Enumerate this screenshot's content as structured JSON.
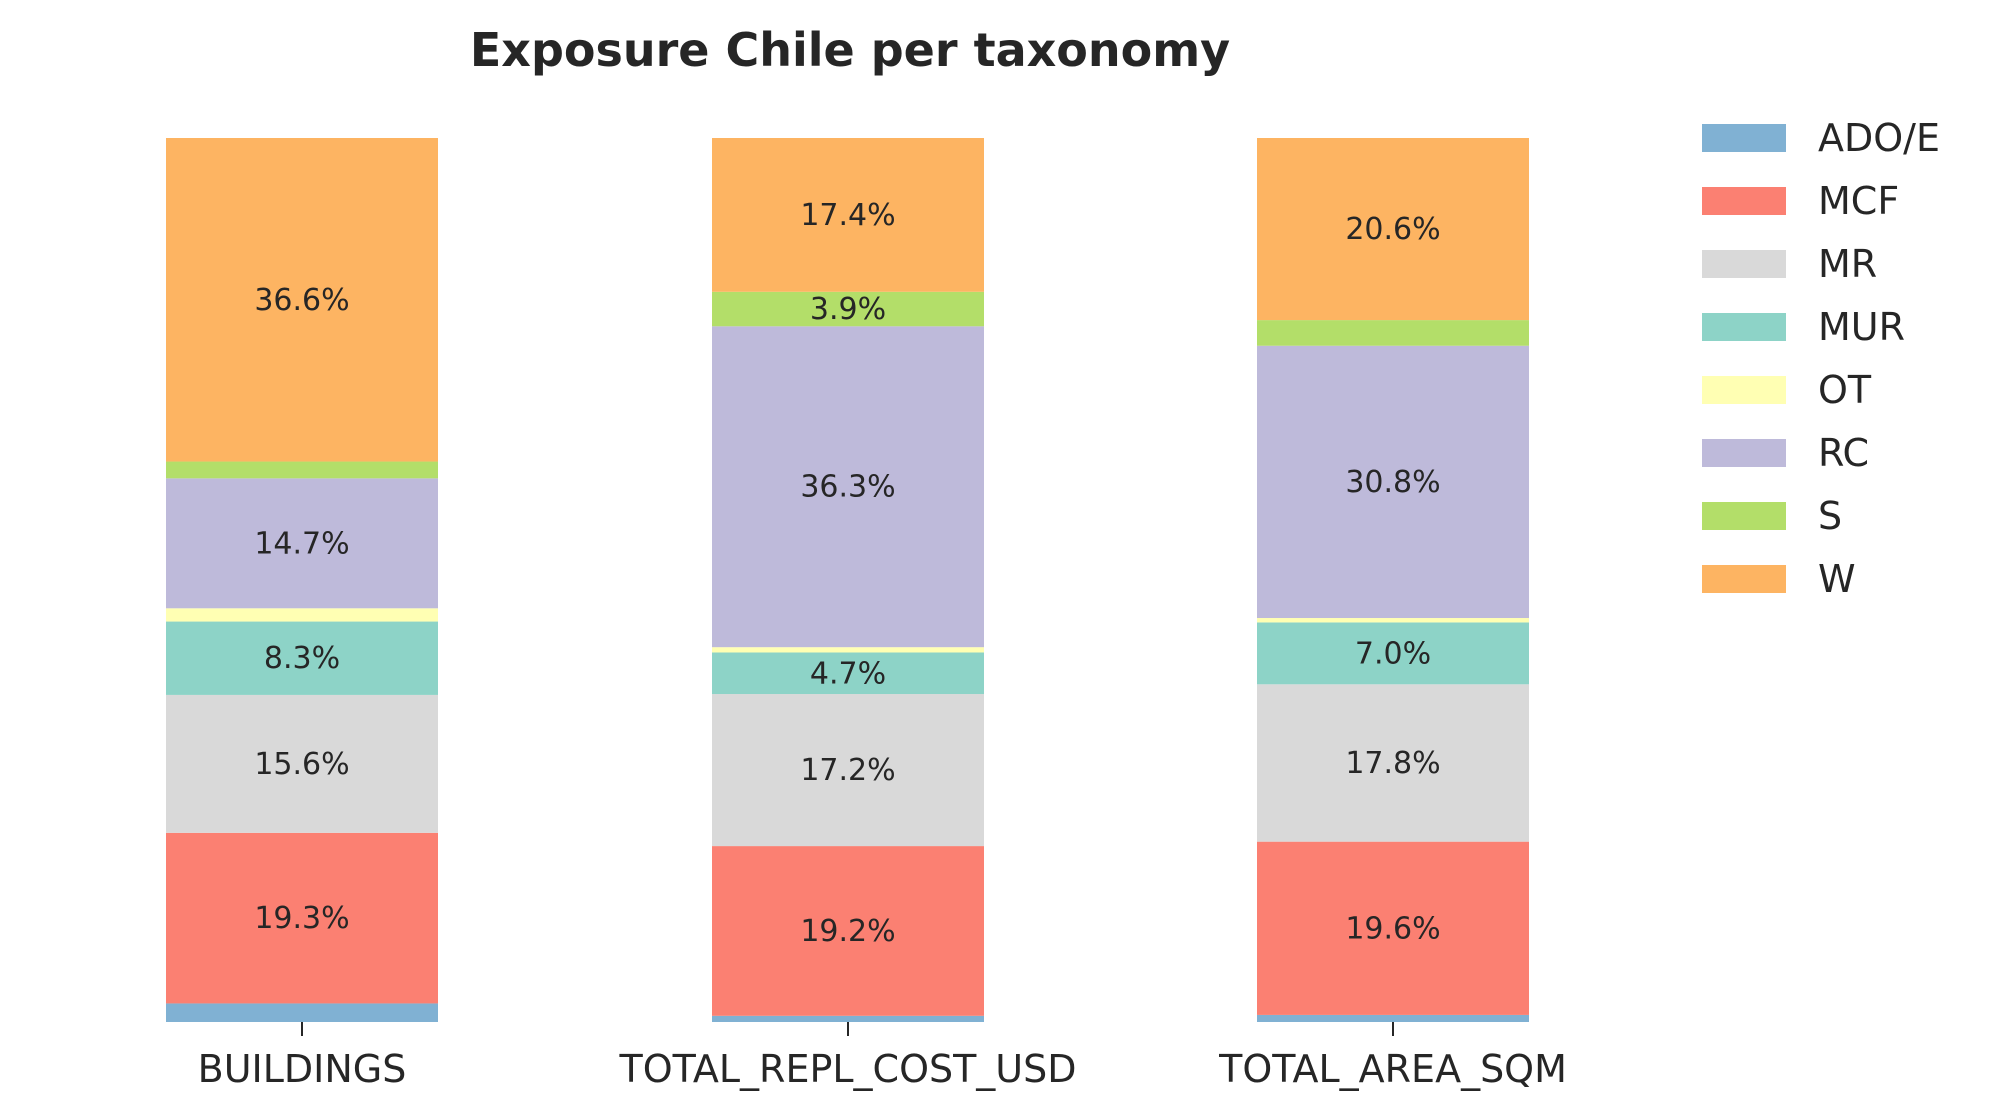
{
  "chart_data": {
    "type": "bar",
    "stacked": true,
    "title": "Exposure Chile per taxonomy",
    "xlabel": "",
    "ylabel": "",
    "ylim": [
      0,
      100
    ],
    "grid": false,
    "legend_placement": "top-right, outside",
    "categories": [
      "BUILDINGS",
      "TOTAL_REPL_COST_USD",
      "TOTAL_AREA_SQM"
    ],
    "series": [
      {
        "name": "ADO/E",
        "color": "#80b1d3",
        "values": [
          2.1,
          0.7,
          0.8
        ],
        "labels": [
          "",
          "",
          ""
        ]
      },
      {
        "name": "MCF",
        "color": "#fb8072",
        "values": [
          19.3,
          19.2,
          19.6
        ],
        "labels": [
          "19.3%",
          "19.2%",
          "19.6%"
        ]
      },
      {
        "name": "MR",
        "color": "#d9d9d9",
        "values": [
          15.6,
          17.2,
          17.8
        ],
        "labels": [
          "15.6%",
          "17.2%",
          "17.8%"
        ]
      },
      {
        "name": "MUR",
        "color": "#8dd3c7",
        "values": [
          8.3,
          4.7,
          7.0
        ],
        "labels": [
          "8.3%",
          "4.7%",
          "7.0%"
        ]
      },
      {
        "name": "OT",
        "color": "#ffffb3",
        "values": [
          1.5,
          0.6,
          0.5
        ],
        "labels": [
          "",
          "",
          ""
        ]
      },
      {
        "name": "RC",
        "color": "#bebada",
        "values": [
          14.7,
          36.3,
          30.8
        ],
        "labels": [
          "14.7%",
          "36.3%",
          "30.8%"
        ]
      },
      {
        "name": "S",
        "color": "#b3de69",
        "values": [
          1.9,
          3.9,
          2.9
        ],
        "labels": [
          "",
          "3.9%",
          ""
        ]
      },
      {
        "name": "W",
        "color": "#fdb462",
        "values": [
          36.6,
          17.4,
          20.6
        ],
        "labels": [
          "36.6%",
          "17.4%",
          "20.6%"
        ]
      }
    ]
  }
}
